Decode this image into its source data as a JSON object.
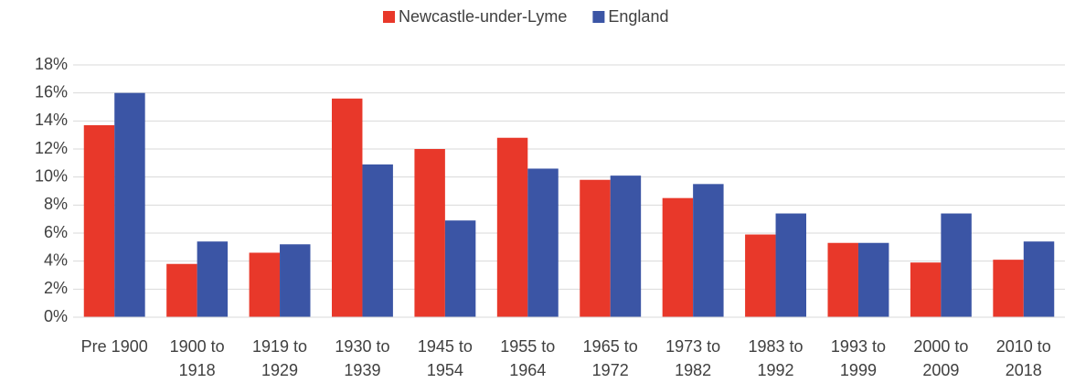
{
  "chart_data": {
    "type": "bar",
    "categories": [
      "Pre 1900",
      "1900 to 1918",
      "1919 to 1929",
      "1930 to 1939",
      "1945 to 1954",
      "1955 to 1964",
      "1965 to 1972",
      "1973 to 1982",
      "1983 to 1992",
      "1993 to 1999",
      "2000 to 2009",
      "2010 to 2018"
    ],
    "series": [
      {
        "name": "Newcastle-under-Lyme",
        "color": "#e8382a",
        "values": [
          13.7,
          3.8,
          4.6,
          15.6,
          12.0,
          12.8,
          9.8,
          8.5,
          5.9,
          5.3,
          3.9,
          4.1
        ]
      },
      {
        "name": "England",
        "color": "#3b55a5",
        "values": [
          16.0,
          5.4,
          5.2,
          10.9,
          6.9,
          10.6,
          10.1,
          9.5,
          7.4,
          5.3,
          7.4,
          5.4
        ]
      }
    ],
    "ylim": [
      0,
      18
    ],
    "yticks": [
      {
        "value": 0,
        "label": "0%"
      },
      {
        "value": 2,
        "label": "2%"
      },
      {
        "value": 4,
        "label": "4%"
      },
      {
        "value": 6,
        "label": "6%"
      },
      {
        "value": 8,
        "label": "8%"
      },
      {
        "value": 10,
        "label": "10%"
      },
      {
        "value": 12,
        "label": "12%"
      },
      {
        "value": 14,
        "label": "14%"
      },
      {
        "value": 16,
        "label": "16%"
      },
      {
        "value": 18,
        "label": "18%"
      }
    ],
    "grid": true,
    "legend": "top"
  }
}
